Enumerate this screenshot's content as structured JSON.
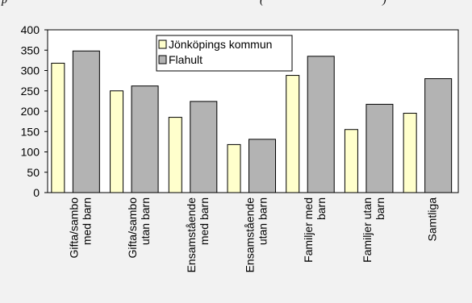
{
  "header": {
    "caption_fragment": "p",
    "caption_tail": "(",
    "caption_end": ")"
  },
  "chart_data": {
    "type": "bar",
    "categories": [
      [
        "Gifta/sambo",
        "med barn"
      ],
      [
        "Gifta/sambo",
        "utan barn"
      ],
      [
        "Ensamstående",
        "med barn"
      ],
      [
        "Ensamstående",
        "utan barn"
      ],
      [
        "Familjer med",
        "barn"
      ],
      [
        "Familjer utan",
        "barn"
      ],
      [
        "Samtliga"
      ]
    ],
    "series": [
      {
        "name": "Jönköpings kommun",
        "color": "#ffffcc",
        "values": [
          318,
          250,
          185,
          118,
          288,
          155,
          195
        ]
      },
      {
        "name": "Flahult",
        "color": "#b3b3b3",
        "values": [
          348,
          262,
          224,
          131,
          335,
          217,
          280
        ]
      }
    ],
    "ylim": [
      0,
      400
    ],
    "yticks": [
      0,
      50,
      100,
      150,
      200,
      250,
      300,
      350,
      400
    ],
    "grid": false,
    "legend_position": "top-center"
  }
}
